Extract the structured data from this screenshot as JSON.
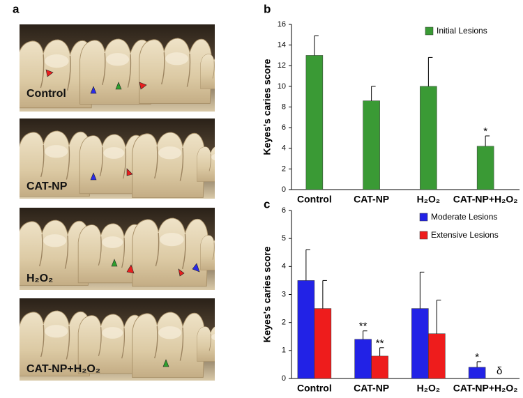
{
  "panels": [
    "a",
    "b",
    "c"
  ],
  "photos": [
    {
      "label": "Control"
    },
    {
      "label": "CAT-NP"
    },
    {
      "label": "H₂O₂"
    },
    {
      "label": "CAT-NP+H₂O₂"
    }
  ],
  "chart_data": [
    {
      "type": "bar",
      "y_label": "Keyes's caries score",
      "categories": [
        "Control",
        "CAT-NP",
        "H₂O₂",
        "CAT-NP+H₂O₂"
      ],
      "series": [
        {
          "name": "Initial Lesions",
          "color": "#3a9a35",
          "values": [
            13,
            8.6,
            10,
            4.2
          ],
          "errors": [
            1.9,
            1.4,
            2.8,
            1.0
          ],
          "annotations": [
            null,
            null,
            null,
            "*"
          ]
        }
      ],
      "ylim": [
        0,
        16
      ],
      "yticks": [
        0,
        2,
        4,
        6,
        8,
        10,
        12,
        14,
        16
      ],
      "grid": false,
      "legend": "top-right"
    },
    {
      "type": "bar",
      "y_label": "Keyes's caries score",
      "categories": [
        "Control",
        "CAT-NP",
        "H₂O₂",
        "CAT-NP+H₂O₂"
      ],
      "series": [
        {
          "name": "Moderate Lesions",
          "color": "#2222e6",
          "values": [
            3.5,
            1.4,
            2.5,
            0.4
          ],
          "errors": [
            1.1,
            0.3,
            1.3,
            0.2
          ],
          "annotations": [
            null,
            "**",
            null,
            "*"
          ]
        },
        {
          "name": "Extensive Lesions",
          "color": "#ee1c1c",
          "values": [
            2.5,
            0.8,
            1.6,
            0
          ],
          "errors": [
            1.0,
            0.3,
            1.2,
            null
          ],
          "annotations": [
            null,
            "**",
            null,
            "δ"
          ]
        }
      ],
      "ylim": [
        0,
        6
      ],
      "yticks": [
        0,
        1,
        2,
        3,
        4,
        5,
        6
      ],
      "grid": false,
      "legend": "top-right"
    }
  ]
}
